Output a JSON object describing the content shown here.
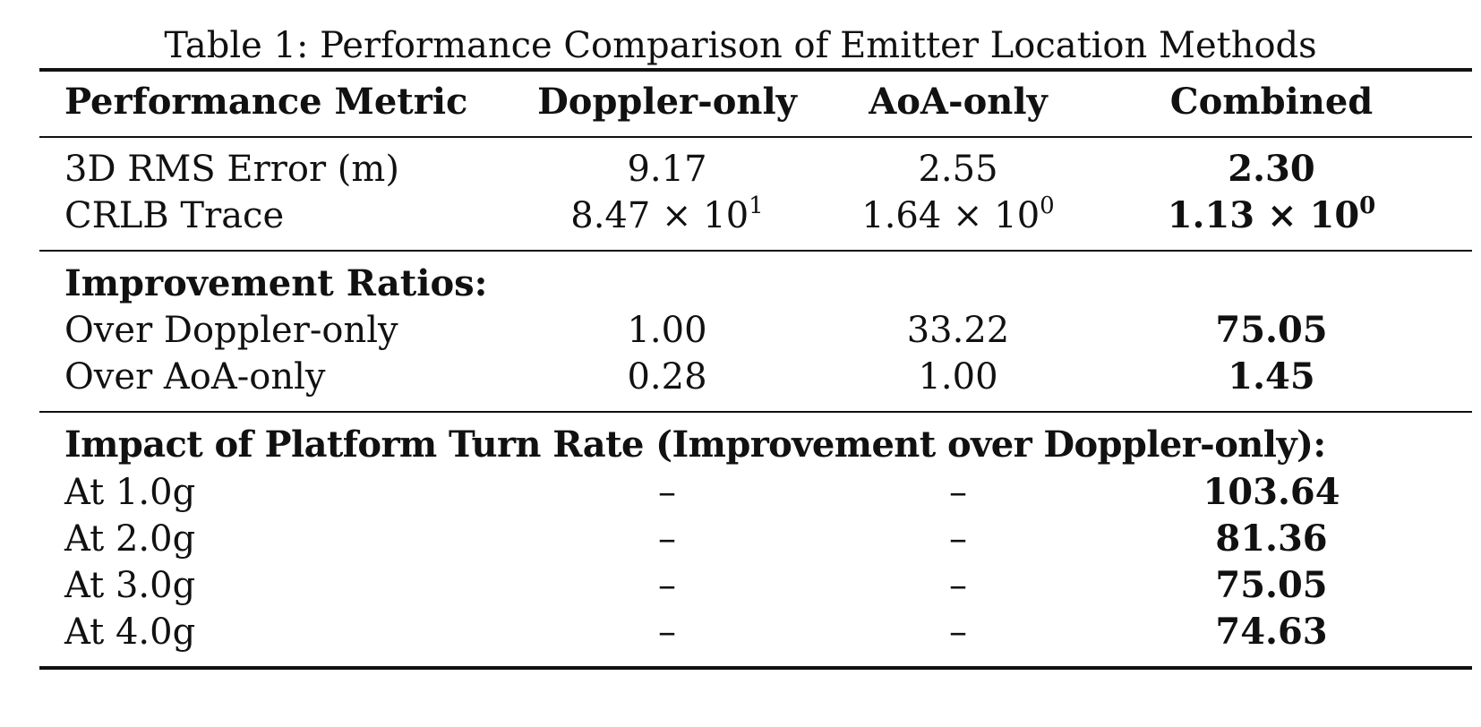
{
  "caption": "Table 1: Performance Comparison of Emitter Location Methods",
  "columns": [
    "Performance Metric",
    "Doppler-only",
    "AoA-only",
    "Combined"
  ],
  "metrics": [
    {
      "label": "3D RMS Error (m)",
      "doppler": "9.17",
      "aoa": "2.55",
      "combined": "2.30"
    },
    {
      "label": "CRLB Trace",
      "doppler": {
        "base": "8.47 × 10",
        "exp": "1"
      },
      "aoa": {
        "base": "1.64 × 10",
        "exp": "0"
      },
      "combined": {
        "base": "1.13 × 10",
        "exp": "0"
      }
    }
  ],
  "improvement": {
    "title": "Improvement Ratios:",
    "rows": [
      {
        "label": "Over Doppler-only",
        "doppler": "1.00",
        "aoa": "33.22",
        "combined": "75.05"
      },
      {
        "label": "Over AoA-only",
        "doppler": "0.28",
        "aoa": "1.00",
        "combined": "1.45"
      }
    ]
  },
  "turn_rate": {
    "title": "Impact of Platform Turn Rate (Improvement over Doppler-only):",
    "rows": [
      {
        "label": "At 1.0g",
        "doppler": "–",
        "aoa": "–",
        "combined": "103.64"
      },
      {
        "label": "At 2.0g",
        "doppler": "–",
        "aoa": "–",
        "combined": "81.36"
      },
      {
        "label": "At 3.0g",
        "doppler": "–",
        "aoa": "–",
        "combined": "75.05"
      },
      {
        "label": "At 4.0g",
        "doppler": "–",
        "aoa": "–",
        "combined": "74.63"
      }
    ]
  }
}
